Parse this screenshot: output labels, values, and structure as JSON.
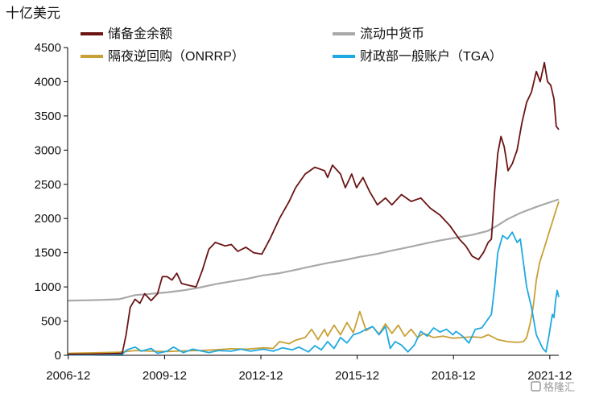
{
  "chart_data": {
    "type": "line",
    "unit_label": "十亿美元",
    "ylim": [
      0,
      4500
    ],
    "yticks": [
      0,
      500,
      1000,
      1500,
      2000,
      2500,
      3000,
      3500,
      4000,
      4500
    ],
    "xlim": [
      2006.9,
      2022.2
    ],
    "xticks": [
      {
        "label": "2006-12",
        "value": 2006.92
      },
      {
        "label": "2009-12",
        "value": 2009.92
      },
      {
        "label": "2012-12",
        "value": 2012.92
      },
      {
        "label": "2015-12",
        "value": 2015.92
      },
      {
        "label": "2018-12",
        "value": 2018.92
      },
      {
        "label": "2021-12",
        "value": 2021.92
      }
    ],
    "grid": false,
    "legend_position": "top",
    "series": [
      {
        "name": "储备金余额",
        "color": "#6b1414",
        "points": [
          [
            2006.92,
            15
          ],
          [
            2007.5,
            15
          ],
          [
            2008.0,
            20
          ],
          [
            2008.6,
            30
          ],
          [
            2008.72,
            300
          ],
          [
            2008.85,
            700
          ],
          [
            2009.0,
            820
          ],
          [
            2009.15,
            760
          ],
          [
            2009.3,
            900
          ],
          [
            2009.5,
            800
          ],
          [
            2009.7,
            900
          ],
          [
            2009.85,
            1150
          ],
          [
            2010.0,
            1150
          ],
          [
            2010.15,
            1100
          ],
          [
            2010.3,
            1200
          ],
          [
            2010.45,
            1050
          ],
          [
            2010.7,
            1020
          ],
          [
            2010.9,
            1000
          ],
          [
            2011.1,
            1250
          ],
          [
            2011.3,
            1550
          ],
          [
            2011.5,
            1650
          ],
          [
            2011.8,
            1600
          ],
          [
            2012.0,
            1620
          ],
          [
            2012.2,
            1520
          ],
          [
            2012.45,
            1580
          ],
          [
            2012.7,
            1500
          ],
          [
            2012.95,
            1480
          ],
          [
            2013.2,
            1700
          ],
          [
            2013.5,
            2000
          ],
          [
            2013.8,
            2250
          ],
          [
            2014.0,
            2450
          ],
          [
            2014.3,
            2650
          ],
          [
            2014.6,
            2750
          ],
          [
            2014.9,
            2700
          ],
          [
            2015.0,
            2600
          ],
          [
            2015.15,
            2780
          ],
          [
            2015.4,
            2650
          ],
          [
            2015.55,
            2450
          ],
          [
            2015.75,
            2650
          ],
          [
            2015.9,
            2450
          ],
          [
            2016.1,
            2600
          ],
          [
            2016.3,
            2400
          ],
          [
            2016.55,
            2200
          ],
          [
            2016.8,
            2300
          ],
          [
            2017.0,
            2200
          ],
          [
            2017.3,
            2350
          ],
          [
            2017.6,
            2250
          ],
          [
            2017.9,
            2300
          ],
          [
            2018.2,
            2150
          ],
          [
            2018.5,
            2050
          ],
          [
            2018.8,
            1900
          ],
          [
            2019.1,
            1700
          ],
          [
            2019.3,
            1600
          ],
          [
            2019.5,
            1450
          ],
          [
            2019.7,
            1400
          ],
          [
            2019.85,
            1500
          ],
          [
            2020.0,
            1650
          ],
          [
            2020.1,
            1700
          ],
          [
            2020.2,
            2400
          ],
          [
            2020.3,
            2950
          ],
          [
            2020.4,
            3200
          ],
          [
            2020.5,
            3050
          ],
          [
            2020.62,
            2700
          ],
          [
            2020.75,
            2800
          ],
          [
            2020.9,
            3000
          ],
          [
            2021.05,
            3400
          ],
          [
            2021.2,
            3700
          ],
          [
            2021.35,
            3850
          ],
          [
            2021.5,
            4150
          ],
          [
            2021.62,
            4000
          ],
          [
            2021.75,
            4280
          ],
          [
            2021.85,
            4000
          ],
          [
            2021.95,
            3950
          ],
          [
            2022.05,
            3750
          ],
          [
            2022.12,
            3350
          ],
          [
            2022.2,
            3300
          ]
        ]
      },
      {
        "name": "流动中货币",
        "color": "#a9a9a9",
        "points": [
          [
            2006.92,
            800
          ],
          [
            2007.5,
            805
          ],
          [
            2008.0,
            810
          ],
          [
            2008.5,
            820
          ],
          [
            2009.0,
            880
          ],
          [
            2009.5,
            900
          ],
          [
            2010.0,
            920
          ],
          [
            2010.5,
            950
          ],
          [
            2011.0,
            990
          ],
          [
            2011.5,
            1040
          ],
          [
            2012.0,
            1080
          ],
          [
            2012.5,
            1120
          ],
          [
            2013.0,
            1170
          ],
          [
            2013.5,
            1200
          ],
          [
            2014.0,
            1250
          ],
          [
            2014.5,
            1300
          ],
          [
            2015.0,
            1350
          ],
          [
            2015.5,
            1390
          ],
          [
            2016.0,
            1440
          ],
          [
            2016.5,
            1480
          ],
          [
            2017.0,
            1530
          ],
          [
            2017.5,
            1580
          ],
          [
            2018.0,
            1630
          ],
          [
            2018.5,
            1680
          ],
          [
            2019.0,
            1720
          ],
          [
            2019.5,
            1760
          ],
          [
            2020.0,
            1820
          ],
          [
            2020.3,
            1900
          ],
          [
            2020.6,
            1990
          ],
          [
            2021.0,
            2080
          ],
          [
            2021.5,
            2170
          ],
          [
            2022.0,
            2250
          ],
          [
            2022.2,
            2280
          ]
        ]
      },
      {
        "name": "隔夜逆回购（ONRRP）",
        "color": "#c9a035",
        "points": [
          [
            2006.92,
            30
          ],
          [
            2008.0,
            40
          ],
          [
            2008.5,
            45
          ],
          [
            2009.0,
            70
          ],
          [
            2009.5,
            60
          ],
          [
            2010.0,
            55
          ],
          [
            2010.5,
            65
          ],
          [
            2011.0,
            70
          ],
          [
            2011.5,
            80
          ],
          [
            2012.0,
            95
          ],
          [
            2012.5,
            90
          ],
          [
            2013.0,
            110
          ],
          [
            2013.3,
            100
          ],
          [
            2013.5,
            200
          ],
          [
            2013.8,
            170
          ],
          [
            2014.0,
            220
          ],
          [
            2014.3,
            260
          ],
          [
            2014.5,
            380
          ],
          [
            2014.7,
            230
          ],
          [
            2014.9,
            380
          ],
          [
            2015.0,
            280
          ],
          [
            2015.2,
            440
          ],
          [
            2015.4,
            300
          ],
          [
            2015.6,
            480
          ],
          [
            2015.8,
            330
          ],
          [
            2016.0,
            640
          ],
          [
            2016.2,
            360
          ],
          [
            2016.4,
            420
          ],
          [
            2016.6,
            310
          ],
          [
            2016.8,
            460
          ],
          [
            2017.0,
            320
          ],
          [
            2017.2,
            440
          ],
          [
            2017.4,
            280
          ],
          [
            2017.6,
            380
          ],
          [
            2017.8,
            260
          ],
          [
            2018.0,
            320
          ],
          [
            2018.3,
            260
          ],
          [
            2018.6,
            280
          ],
          [
            2018.9,
            250
          ],
          [
            2019.2,
            260
          ],
          [
            2019.5,
            270
          ],
          [
            2019.8,
            260
          ],
          [
            2020.0,
            300
          ],
          [
            2020.3,
            230
          ],
          [
            2020.6,
            200
          ],
          [
            2020.9,
            190
          ],
          [
            2021.1,
            200
          ],
          [
            2021.2,
            260
          ],
          [
            2021.3,
            450
          ],
          [
            2021.4,
            700
          ],
          [
            2021.5,
            1100
          ],
          [
            2021.6,
            1350
          ],
          [
            2021.7,
            1500
          ],
          [
            2021.8,
            1650
          ],
          [
            2021.9,
            1800
          ],
          [
            2022.0,
            1950
          ],
          [
            2022.1,
            2100
          ],
          [
            2022.2,
            2250
          ]
        ]
      },
      {
        "name": "财政部一般账户（TGA）",
        "color": "#1fa9e1",
        "points": [
          [
            2006.92,
            5
          ],
          [
            2007.5,
            5
          ],
          [
            2008.0,
            10
          ],
          [
            2008.6,
            15
          ],
          [
            2008.75,
            80
          ],
          [
            2009.0,
            120
          ],
          [
            2009.2,
            60
          ],
          [
            2009.5,
            100
          ],
          [
            2009.7,
            30
          ],
          [
            2010.0,
            60
          ],
          [
            2010.2,
            120
          ],
          [
            2010.5,
            40
          ],
          [
            2010.8,
            90
          ],
          [
            2011.0,
            70
          ],
          [
            2011.3,
            40
          ],
          [
            2011.6,
            70
          ],
          [
            2012.0,
            60
          ],
          [
            2012.3,
            90
          ],
          [
            2012.6,
            60
          ],
          [
            2013.0,
            90
          ],
          [
            2013.3,
            60
          ],
          [
            2013.6,
            110
          ],
          [
            2013.9,
            80
          ],
          [
            2014.1,
            120
          ],
          [
            2014.4,
            50
          ],
          [
            2014.6,
            140
          ],
          [
            2014.8,
            80
          ],
          [
            2015.0,
            200
          ],
          [
            2015.2,
            100
          ],
          [
            2015.4,
            260
          ],
          [
            2015.6,
            180
          ],
          [
            2015.8,
            300
          ],
          [
            2016.0,
            330
          ],
          [
            2016.2,
            380
          ],
          [
            2016.4,
            420
          ],
          [
            2016.6,
            300
          ],
          [
            2016.8,
            420
          ],
          [
            2016.95,
            100
          ],
          [
            2017.1,
            200
          ],
          [
            2017.3,
            150
          ],
          [
            2017.5,
            50
          ],
          [
            2017.7,
            150
          ],
          [
            2017.9,
            350
          ],
          [
            2018.1,
            280
          ],
          [
            2018.3,
            400
          ],
          [
            2018.5,
            340
          ],
          [
            2018.7,
            380
          ],
          [
            2018.9,
            300
          ],
          [
            2019.0,
            350
          ],
          [
            2019.2,
            280
          ],
          [
            2019.4,
            180
          ],
          [
            2019.6,
            380
          ],
          [
            2019.8,
            400
          ],
          [
            2019.95,
            500
          ],
          [
            2020.1,
            600
          ],
          [
            2020.2,
            1000
          ],
          [
            2020.3,
            1500
          ],
          [
            2020.45,
            1750
          ],
          [
            2020.6,
            1700
          ],
          [
            2020.75,
            1800
          ],
          [
            2020.9,
            1650
          ],
          [
            2021.0,
            1700
          ],
          [
            2021.2,
            1000
          ],
          [
            2021.35,
            700
          ],
          [
            2021.5,
            300
          ],
          [
            2021.6,
            200
          ],
          [
            2021.7,
            100
          ],
          [
            2021.8,
            50
          ],
          [
            2021.9,
            300
          ],
          [
            2022.0,
            600
          ],
          [
            2022.05,
            550
          ],
          [
            2022.1,
            800
          ],
          [
            2022.15,
            950
          ],
          [
            2022.2,
            850
          ]
        ]
      }
    ]
  },
  "watermark": "格隆汇"
}
